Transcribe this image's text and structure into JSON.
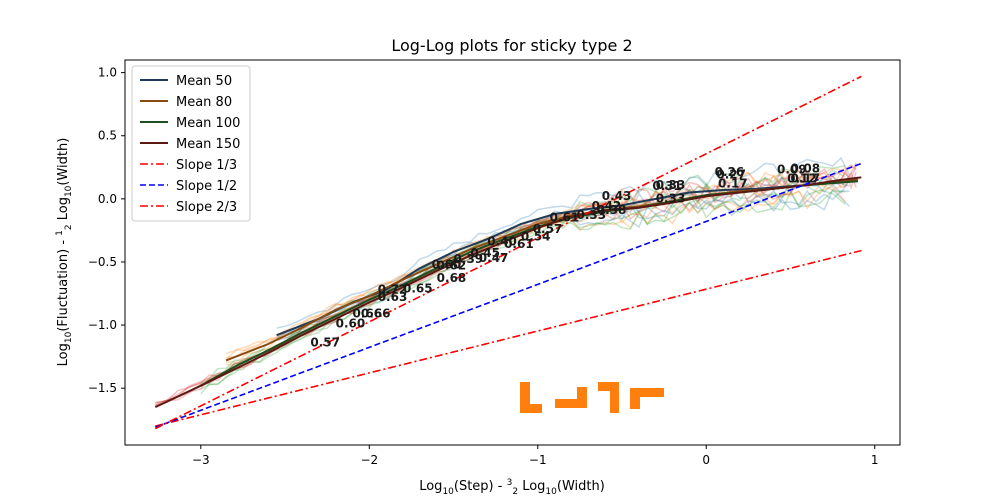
{
  "chart_data": {
    "type": "line",
    "title": "Log-Log plots for sticky type 2",
    "xlabel_parts": [
      "Log",
      "10",
      "(Step) - ",
      "3",
      "2",
      " Log",
      "10",
      "(Width)"
    ],
    "ylabel_parts": [
      "Log",
      "10",
      "(Fluctuation) - ",
      "1",
      "2",
      " Log",
      "10",
      "(Width)"
    ],
    "xlim": [
      -3.45,
      1.15
    ],
    "ylim": [
      -1.95,
      1.1
    ],
    "x_ticks": [
      -3,
      -2,
      -1,
      0,
      1
    ],
    "x_tick_labels": [
      "−3",
      "−2",
      "−1",
      "0",
      "1"
    ],
    "y_ticks": [
      -1.5,
      -1.0,
      -0.5,
      0.0,
      0.5,
      1.0
    ],
    "y_tick_labels": [
      "−1.5",
      "−1.0",
      "−0.5",
      "0.0",
      "0.5",
      "1.0"
    ],
    "grid": false,
    "legend_position": "top-left",
    "series": [
      {
        "name": "Mean 50",
        "color": "#1f3b57",
        "style": "solid",
        "x": [
          -2.55,
          -2.3,
          -2.1,
          -1.9,
          -1.7,
          -1.5,
          -1.3,
          -1.1,
          -0.9,
          -0.7,
          -0.5,
          -0.3,
          -0.1,
          0.1,
          0.3,
          0.5,
          0.7,
          0.9
        ],
        "y": [
          -1.08,
          -0.95,
          -0.82,
          -0.72,
          -0.55,
          -0.42,
          -0.32,
          -0.2,
          -0.12,
          -0.08,
          -0.05,
          0.0,
          0.05,
          0.07,
          0.08,
          0.1,
          0.12,
          0.15
        ]
      },
      {
        "name": "Mean 80",
        "color": "#8a4a10",
        "style": "solid",
        "x": [
          -2.85,
          -2.6,
          -2.4,
          -2.2,
          -2.0,
          -1.8,
          -1.6,
          -1.4,
          -1.2,
          -1.0,
          -0.8,
          -0.6,
          -0.4,
          -0.2,
          0.0,
          0.2,
          0.4,
          0.6,
          0.9
        ],
        "y": [
          -1.28,
          -1.15,
          -1.02,
          -0.88,
          -0.77,
          -0.64,
          -0.52,
          -0.4,
          -0.3,
          -0.2,
          -0.13,
          -0.09,
          -0.06,
          -0.02,
          0.03,
          0.06,
          0.08,
          0.11,
          0.15
        ]
      },
      {
        "name": "Mean 100",
        "color": "#1e4d1e",
        "style": "solid",
        "x": [
          -3.0,
          -2.8,
          -2.6,
          -2.4,
          -2.2,
          -2.0,
          -1.8,
          -1.6,
          -1.4,
          -1.2,
          -1.0,
          -0.8,
          -0.6,
          -0.4,
          -0.2,
          0.0,
          0.2,
          0.4,
          0.6,
          0.9
        ],
        "y": [
          -1.48,
          -1.33,
          -1.2,
          -1.06,
          -0.93,
          -0.8,
          -0.68,
          -0.55,
          -0.42,
          -0.32,
          -0.22,
          -0.15,
          -0.1,
          -0.07,
          -0.02,
          0.03,
          0.05,
          0.08,
          0.11,
          0.14
        ]
      },
      {
        "name": "Mean 150",
        "color": "#5c1a14",
        "style": "solid",
        "x": [
          -3.27,
          -3.0,
          -2.8,
          -2.6,
          -2.4,
          -2.2,
          -2.0,
          -1.8,
          -1.6,
          -1.4,
          -1.2,
          -1.0,
          -0.8,
          -0.6,
          -0.4,
          -0.2,
          0.0,
          0.2,
          0.4,
          0.6,
          0.8,
          0.92
        ],
        "y": [
          -1.65,
          -1.48,
          -1.35,
          -1.22,
          -1.08,
          -0.95,
          -0.82,
          -0.7,
          -0.57,
          -0.45,
          -0.34,
          -0.23,
          -0.14,
          -0.09,
          -0.07,
          -0.03,
          0.02,
          0.05,
          0.08,
          0.11,
          0.15,
          0.17
        ]
      },
      {
        "name": "Slope 1/3",
        "color": "#ff0000",
        "style": "dashdot",
        "x": [
          -3.27,
          0.92
        ],
        "y": [
          -1.8,
          -0.41
        ]
      },
      {
        "name": "Slope 1/2",
        "color": "#0000ff",
        "style": "dashed",
        "x": [
          -3.27,
          0.92
        ],
        "y": [
          -1.81,
          0.28
        ]
      },
      {
        "name": "Slope 2/3",
        "color": "#ff0000",
        "style": "dashdot",
        "x": [
          -3.27,
          0.92
        ],
        "y": [
          -1.82,
          0.97
        ]
      }
    ],
    "annotations": [
      {
        "text": "0.57",
        "x": -2.35,
        "y": -1.17
      },
      {
        "text": "0.60",
        "x": -2.2,
        "y": -1.02
      },
      {
        "text": "0.66",
        "x": -2.05,
        "y": -0.94
      },
      {
        "text": "0.66",
        "x": -2.1,
        "y": -0.94
      },
      {
        "text": "0.63",
        "x": -1.95,
        "y": -0.81
      },
      {
        "text": "0.72",
        "x": -1.95,
        "y": -0.75
      },
      {
        "text": "0.65",
        "x": -1.8,
        "y": -0.74
      },
      {
        "text": "0.68",
        "x": -1.6,
        "y": -0.66
      },
      {
        "text": "0.62",
        "x": -1.6,
        "y": -0.56
      },
      {
        "text": "0.60",
        "x": -1.63,
        "y": -0.55
      },
      {
        "text": "0.39",
        "x": -1.5,
        "y": -0.51
      },
      {
        "text": "0.47",
        "x": -1.35,
        "y": -0.5
      },
      {
        "text": "0.45",
        "x": -1.4,
        "y": -0.46
      },
      {
        "text": "0.61",
        "x": -1.2,
        "y": -0.39
      },
      {
        "text": "0.40",
        "x": -1.3,
        "y": -0.37
      },
      {
        "text": "0.54",
        "x": -1.1,
        "y": -0.33
      },
      {
        "text": "0.57",
        "x": -1.03,
        "y": -0.27
      },
      {
        "text": "0.61",
        "x": -0.93,
        "y": -0.18
      },
      {
        "text": "0.33",
        "x": -0.77,
        "y": -0.16
      },
      {
        "text": "0.38",
        "x": -0.65,
        "y": -0.12
      },
      {
        "text": "0.42",
        "x": -0.68,
        "y": -0.09
      },
      {
        "text": "0.43",
        "x": -0.62,
        "y": -0.01
      },
      {
        "text": "0.33",
        "x": -0.3,
        "y": -0.03
      },
      {
        "text": "0.33",
        "x": -0.3,
        "y": 0.08
      },
      {
        "text": "0.31",
        "x": -0.32,
        "y": 0.07
      },
      {
        "text": "0.17",
        "x": 0.07,
        "y": 0.09
      },
      {
        "text": "0.26",
        "x": 0.05,
        "y": 0.18
      },
      {
        "text": "0.27",
        "x": 0.06,
        "y": 0.16
      },
      {
        "text": "0.12",
        "x": 0.48,
        "y": 0.13
      },
      {
        "text": "0.09",
        "x": 0.42,
        "y": 0.2
      },
      {
        "text": "0.08",
        "x": 0.5,
        "y": 0.21
      },
      {
        "text": "0.17",
        "x": 0.5,
        "y": 0.13
      }
    ]
  }
}
